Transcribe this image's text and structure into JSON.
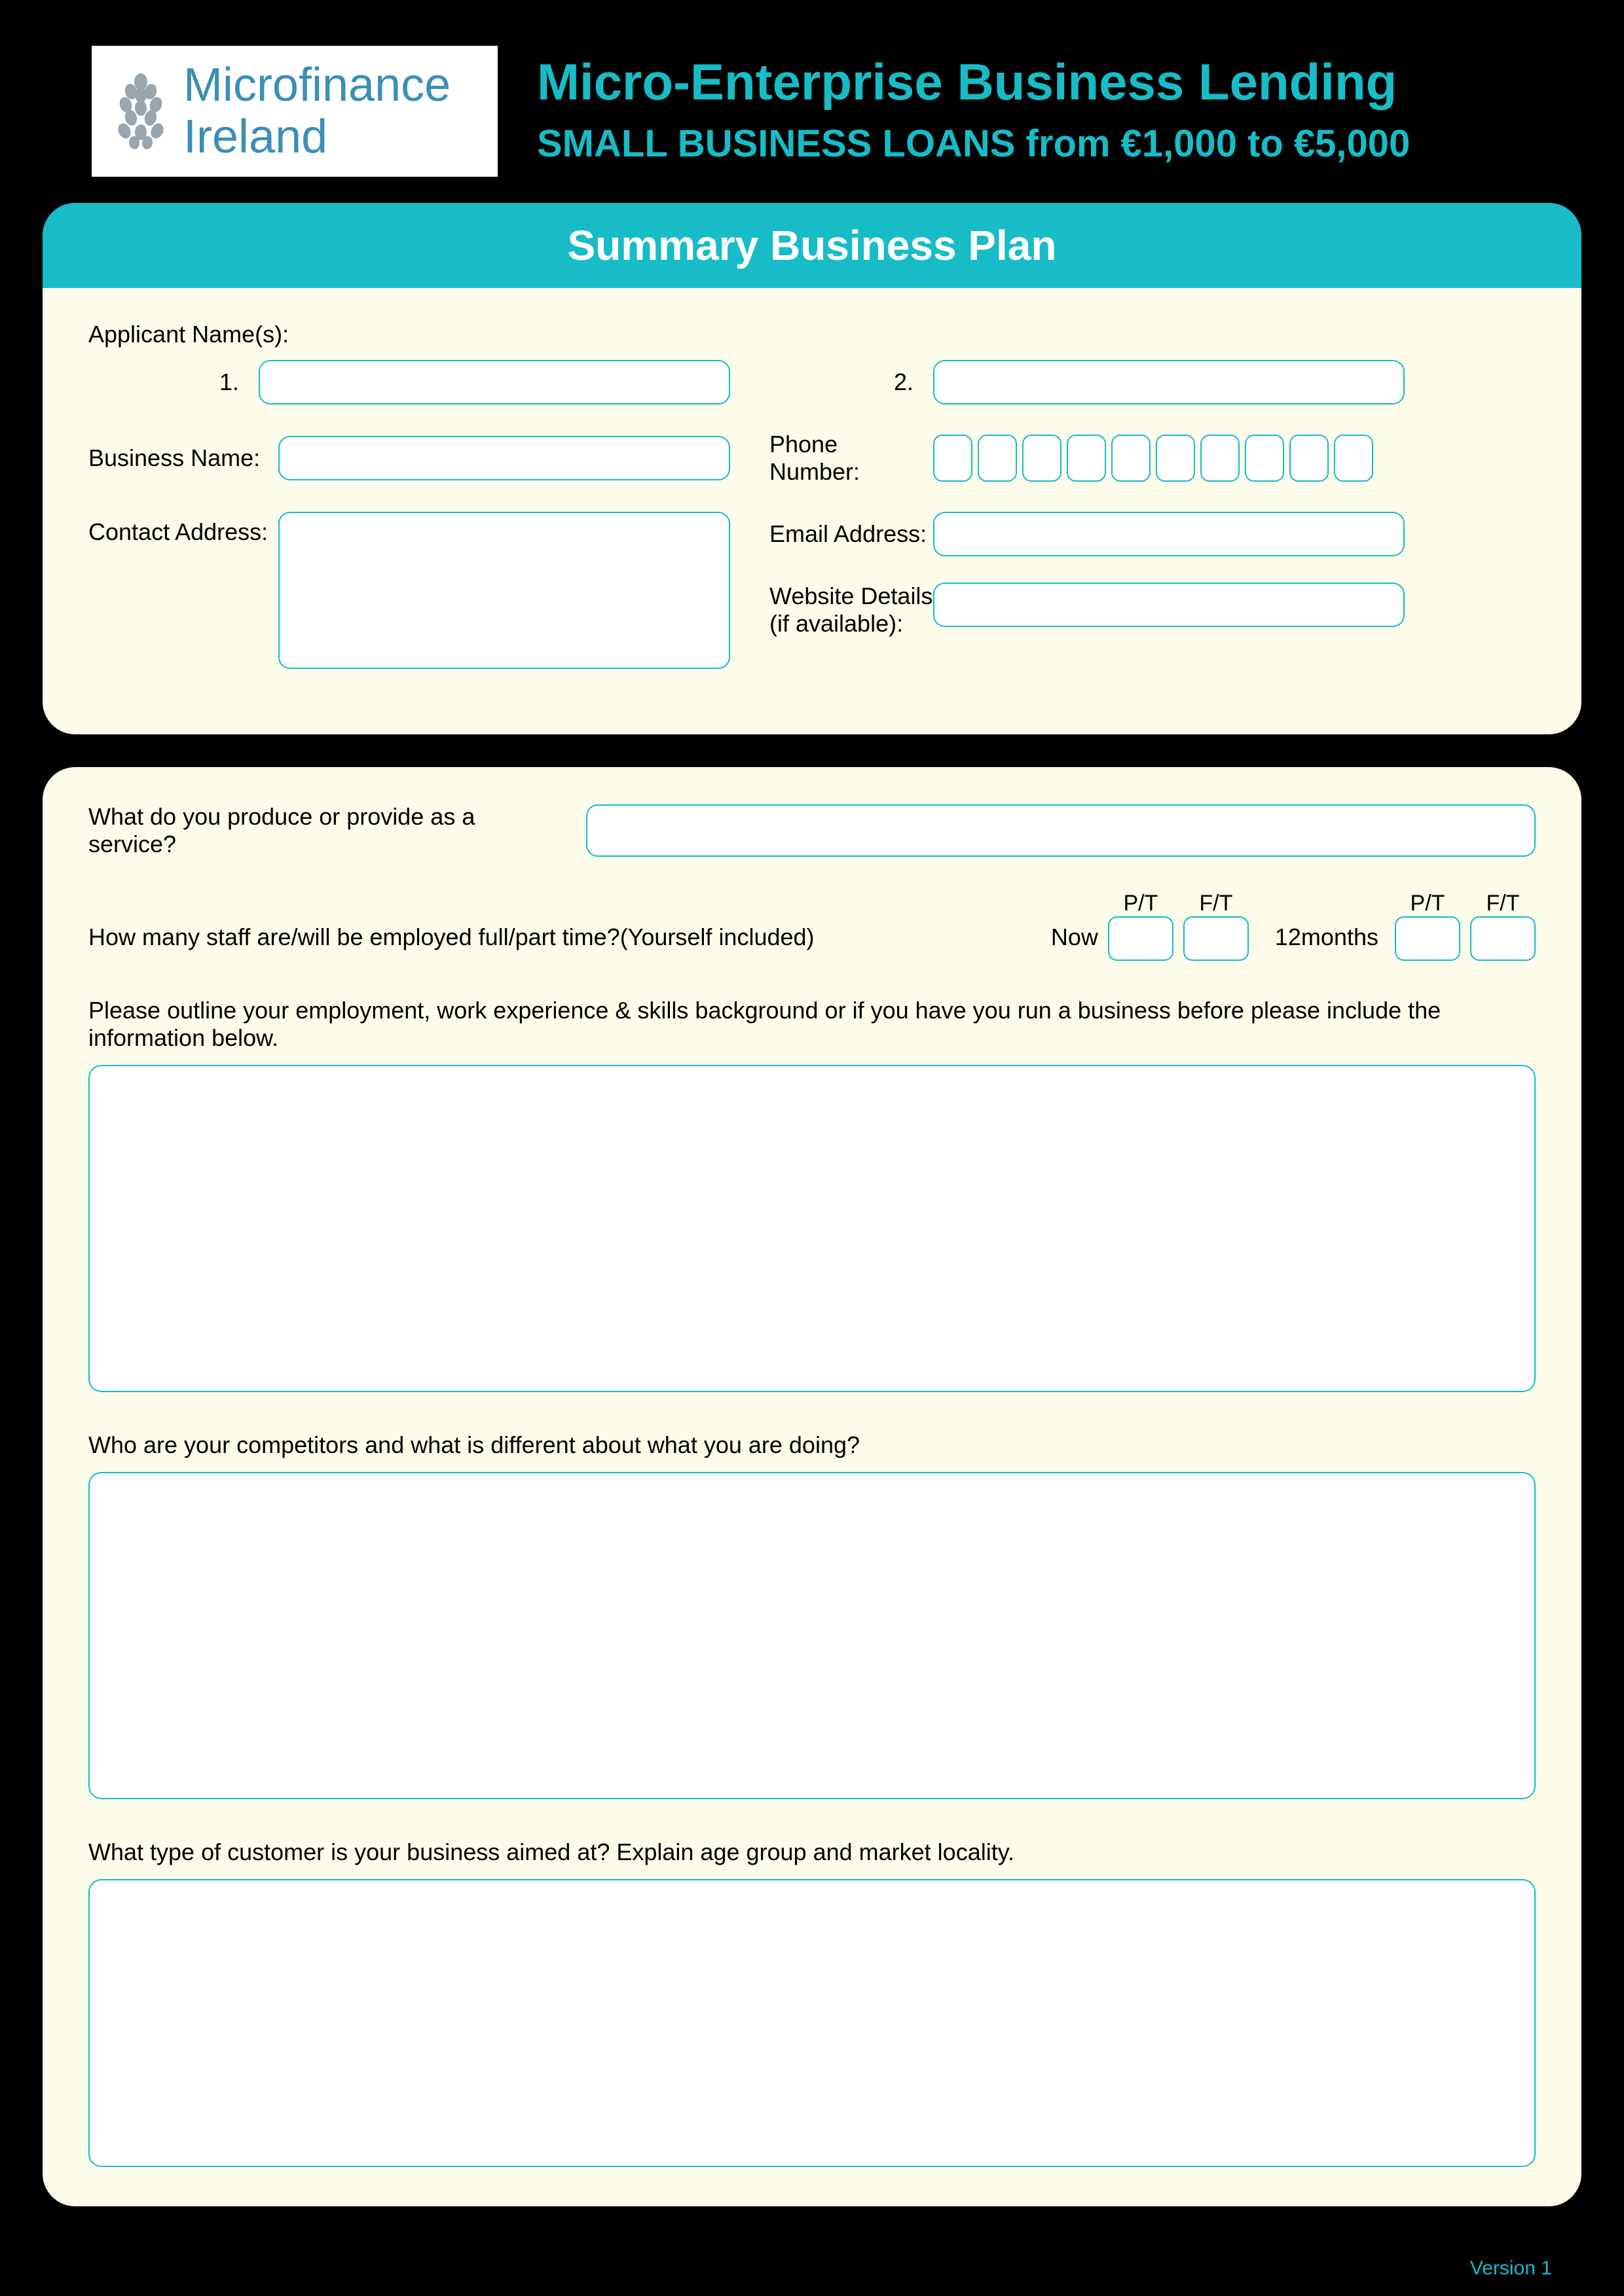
{
  "colors": {
    "page_bg": "#000000",
    "panel_bg": "#fdfbea",
    "accent": "#17bcc6",
    "input_border": "#17bcc6",
    "input_bg": "#ffffff",
    "text": "#000000",
    "logo_text": "#3a8fb7"
  },
  "logo": {
    "line1": "Microfinance",
    "line2": "Ireland"
  },
  "header": {
    "main_title": "Micro-Enterprise Business Lending",
    "sub_title": "SMALL BUSINESS LOANS from €1,000 to €5,000"
  },
  "panel1": {
    "title": "Summary Business Plan",
    "applicant_names_label": "Applicant Name(s):",
    "applicant1_num": "1.",
    "applicant2_num": "2.",
    "business_name_label": "Business Name:",
    "phone_label": "Phone Number:",
    "phone_digit_count": 10,
    "contact_address_label": "Contact Address:",
    "email_label": "Email Address:",
    "website_label_line1": "Website Details",
    "website_label_line2": "(if available):"
  },
  "panel2": {
    "q_service": "What do you produce or provide as a service?",
    "q_staff": "How many staff are/will be employed full/part time?(Yourself included)",
    "now_label": "Now",
    "twelve_label": "12months",
    "pt_label": "P/T",
    "ft_label": "F/T",
    "q_background": "Please outline your employment, work experience & skills background or if you have you run a business before please include the information below.",
    "q_competitors": "Who are your competitors and what is different about what you are doing?",
    "q_customers": "What type of customer is your business aimed at? Explain age group and market locality."
  },
  "footer": {
    "version": "Version 1"
  }
}
